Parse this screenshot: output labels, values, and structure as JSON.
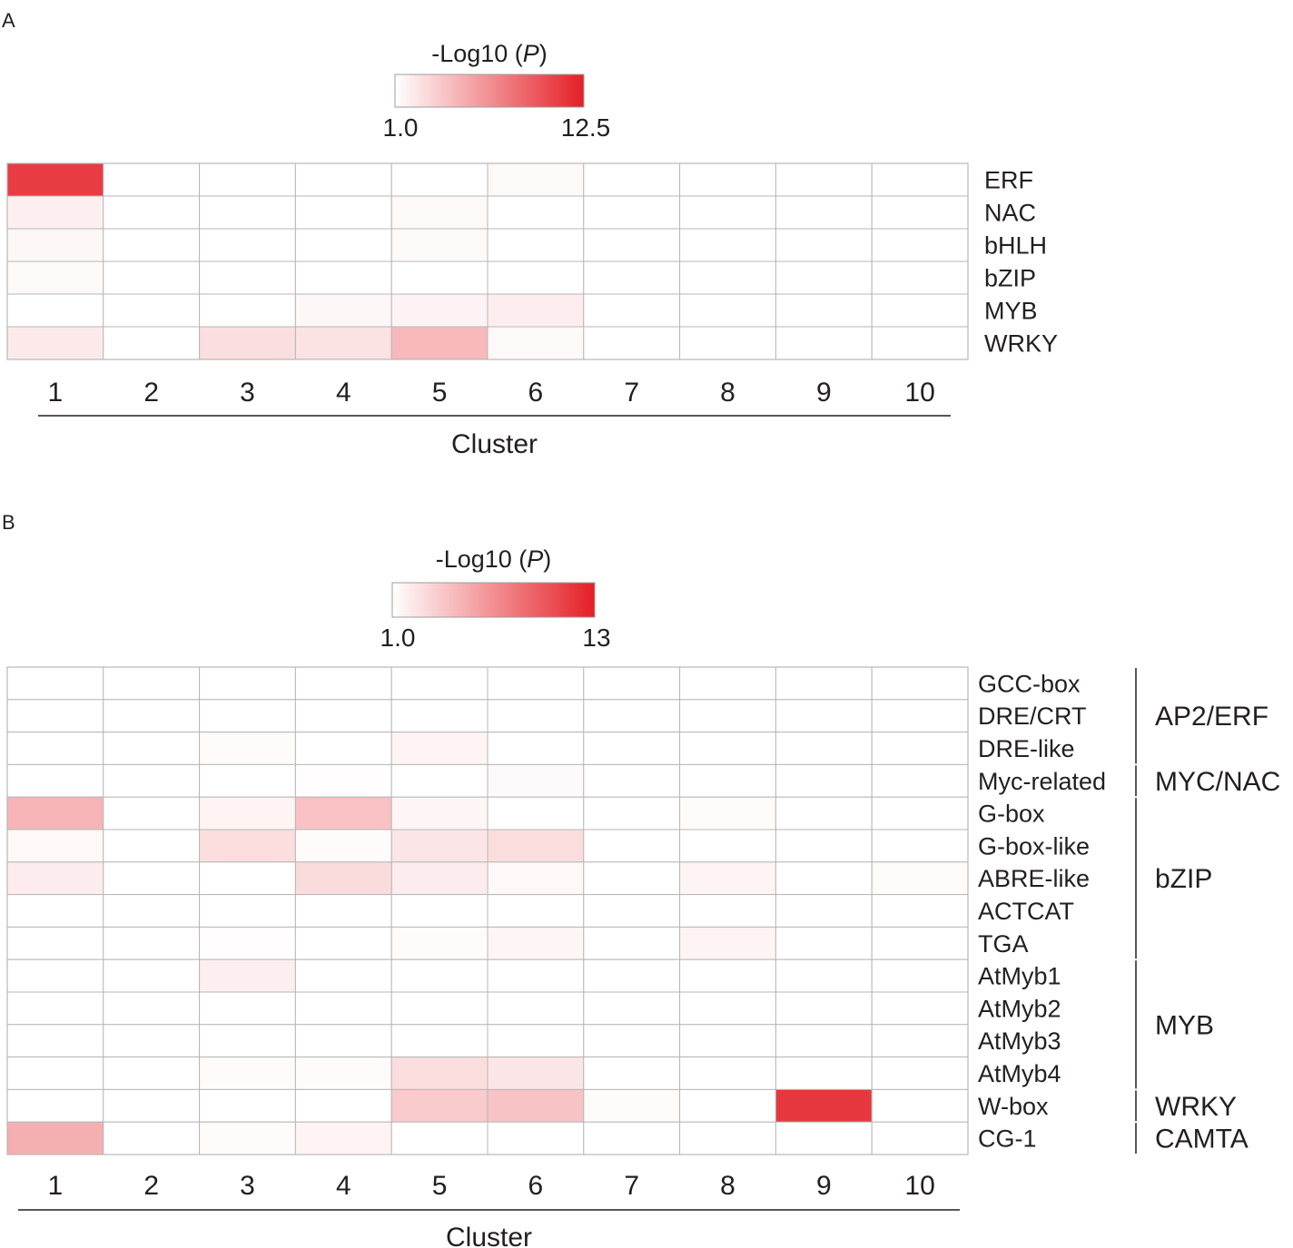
{
  "chart_data": [
    {
      "type": "heatmap",
      "panel_label": "A",
      "legend": {
        "title_prefix": "-Log10 (",
        "title_var": "P",
        "title_suffix": ")",
        "min_label": "1.0",
        "max_label": "12.5",
        "min": 1.0,
        "max": 12.5
      },
      "xlabel": "Cluster",
      "columns": [
        "1",
        "2",
        "3",
        "4",
        "5",
        "6",
        "7",
        "8",
        "9",
        "10"
      ],
      "rows": [
        "ERF",
        "NAC",
        "bHLH",
        "bZIP",
        "MYB",
        "WRKY"
      ],
      "groups": [],
      "values": [
        [
          11.0,
          1.0,
          1.0,
          1.0,
          1.0,
          1.3,
          1.0,
          1.0,
          1.0,
          1.0
        ],
        [
          1.8,
          1.0,
          1.0,
          1.0,
          1.3,
          1.0,
          1.0,
          1.0,
          1.0,
          1.0
        ],
        [
          1.4,
          1.0,
          1.0,
          1.0,
          1.3,
          1.0,
          1.0,
          1.0,
          1.0,
          1.0
        ],
        [
          1.3,
          1.0,
          1.0,
          1.0,
          1.0,
          1.0,
          1.0,
          1.0,
          1.0,
          1.0
        ],
        [
          1.0,
          1.0,
          1.0,
          1.4,
          1.6,
          1.9,
          1.0,
          1.0,
          1.0,
          1.0
        ],
        [
          2.1,
          1.0,
          2.7,
          2.5,
          4.6,
          1.3,
          1.0,
          1.0,
          1.0,
          1.0
        ]
      ]
    },
    {
      "type": "heatmap",
      "panel_label": "B",
      "legend": {
        "title_prefix": "-Log10 (",
        "title_var": "P",
        "title_suffix": ")",
        "min_label": "1.0",
        "max_label": "13",
        "min": 1.0,
        "max": 13
      },
      "xlabel": "Cluster",
      "columns": [
        "1",
        "2",
        "3",
        "4",
        "5",
        "6",
        "7",
        "8",
        "9",
        "10"
      ],
      "rows": [
        "GCC-box",
        "DRE/CRT",
        "DRE-like",
        "Myc-related",
        "G-box",
        "G-box-like",
        "ABRE-like",
        "ACTCAT",
        "TGA",
        "AtMyb1",
        "AtMyb2",
        "AtMyb3",
        "AtMyb4",
        "W-box",
        "CG-1"
      ],
      "groups": [
        {
          "label": "AP2/ERF",
          "start": 0,
          "end": 2
        },
        {
          "label": "MYC/NAC",
          "start": 3,
          "end": 3
        },
        {
          "label": "bZIP",
          "start": 4,
          "end": 8
        },
        {
          "label": "MYB",
          "start": 9,
          "end": 12
        },
        {
          "label": "WRKY",
          "start": 13,
          "end": 13
        },
        {
          "label": "CAMTA",
          "start": 14,
          "end": 14
        }
      ],
      "values": [
        [
          1.0,
          1.0,
          1.0,
          1.0,
          1.0,
          1.0,
          1.0,
          1.0,
          1.0,
          1.0
        ],
        [
          1.0,
          1.0,
          1.0,
          1.0,
          1.0,
          1.0,
          1.0,
          1.0,
          1.0,
          1.0
        ],
        [
          1.0,
          1.0,
          1.2,
          1.0,
          1.6,
          1.0,
          1.0,
          1.0,
          1.0,
          1.0
        ],
        [
          1.0,
          1.0,
          1.0,
          1.1,
          1.0,
          1.3,
          1.0,
          1.0,
          1.0,
          1.0
        ],
        [
          5.0,
          1.0,
          1.6,
          4.3,
          1.5,
          1.0,
          1.0,
          1.2,
          1.0,
          1.0
        ],
        [
          1.4,
          1.0,
          2.8,
          1.2,
          2.4,
          2.8,
          1.0,
          1.0,
          1.0,
          1.0
        ],
        [
          2.0,
          1.0,
          1.0,
          2.9,
          2.0,
          1.4,
          1.0,
          1.6,
          1.0,
          1.2
        ],
        [
          1.0,
          1.0,
          1.0,
          1.0,
          1.0,
          1.0,
          1.0,
          1.0,
          1.0,
          1.0
        ],
        [
          1.0,
          1.0,
          1.1,
          1.0,
          1.2,
          1.5,
          1.0,
          1.6,
          1.0,
          1.0
        ],
        [
          1.0,
          1.0,
          1.9,
          1.0,
          1.0,
          1.0,
          1.0,
          1.0,
          1.0,
          1.0
        ],
        [
          1.0,
          1.0,
          1.0,
          1.0,
          1.0,
          1.0,
          1.0,
          1.0,
          1.0,
          1.0
        ],
        [
          1.0,
          1.0,
          1.0,
          1.0,
          1.0,
          1.0,
          1.0,
          1.0,
          1.0,
          1.0
        ],
        [
          1.0,
          1.0,
          1.2,
          1.2,
          2.8,
          2.4,
          1.0,
          1.0,
          1.0,
          1.0
        ],
        [
          1.0,
          1.0,
          1.0,
          1.0,
          3.8,
          4.2,
          1.2,
          1.0,
          11.7,
          1.0
        ],
        [
          5.3,
          1.0,
          1.2,
          1.6,
          1.0,
          1.0,
          1.0,
          1.0,
          1.0,
          1.0
        ]
      ]
    }
  ],
  "colors": {
    "low": "#ffffff",
    "high": "#e41f26",
    "grid": "#b7b7b7",
    "text": "#231f20",
    "rule": "#231f20"
  }
}
